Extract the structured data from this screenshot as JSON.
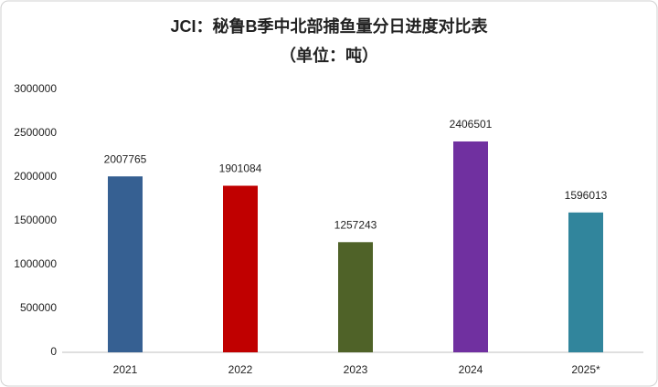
{
  "chart_data": {
    "type": "bar",
    "title": "JCI：秘鲁B季中北部捕鱼量分日进度对比表",
    "subtitle": "（单位：吨）",
    "categories": [
      "2021",
      "2022",
      "2023",
      "2024",
      "2025*"
    ],
    "values": [
      2007765,
      1901084,
      1257243,
      2406501,
      1596013
    ],
    "colors": [
      "#366092",
      "#c00000",
      "#4f6228",
      "#7030a0",
      "#31859c"
    ],
    "ylim": [
      0,
      3000000
    ],
    "yticks": [
      0,
      500000,
      1000000,
      1500000,
      2000000,
      2500000,
      3000000
    ],
    "grid": false
  }
}
